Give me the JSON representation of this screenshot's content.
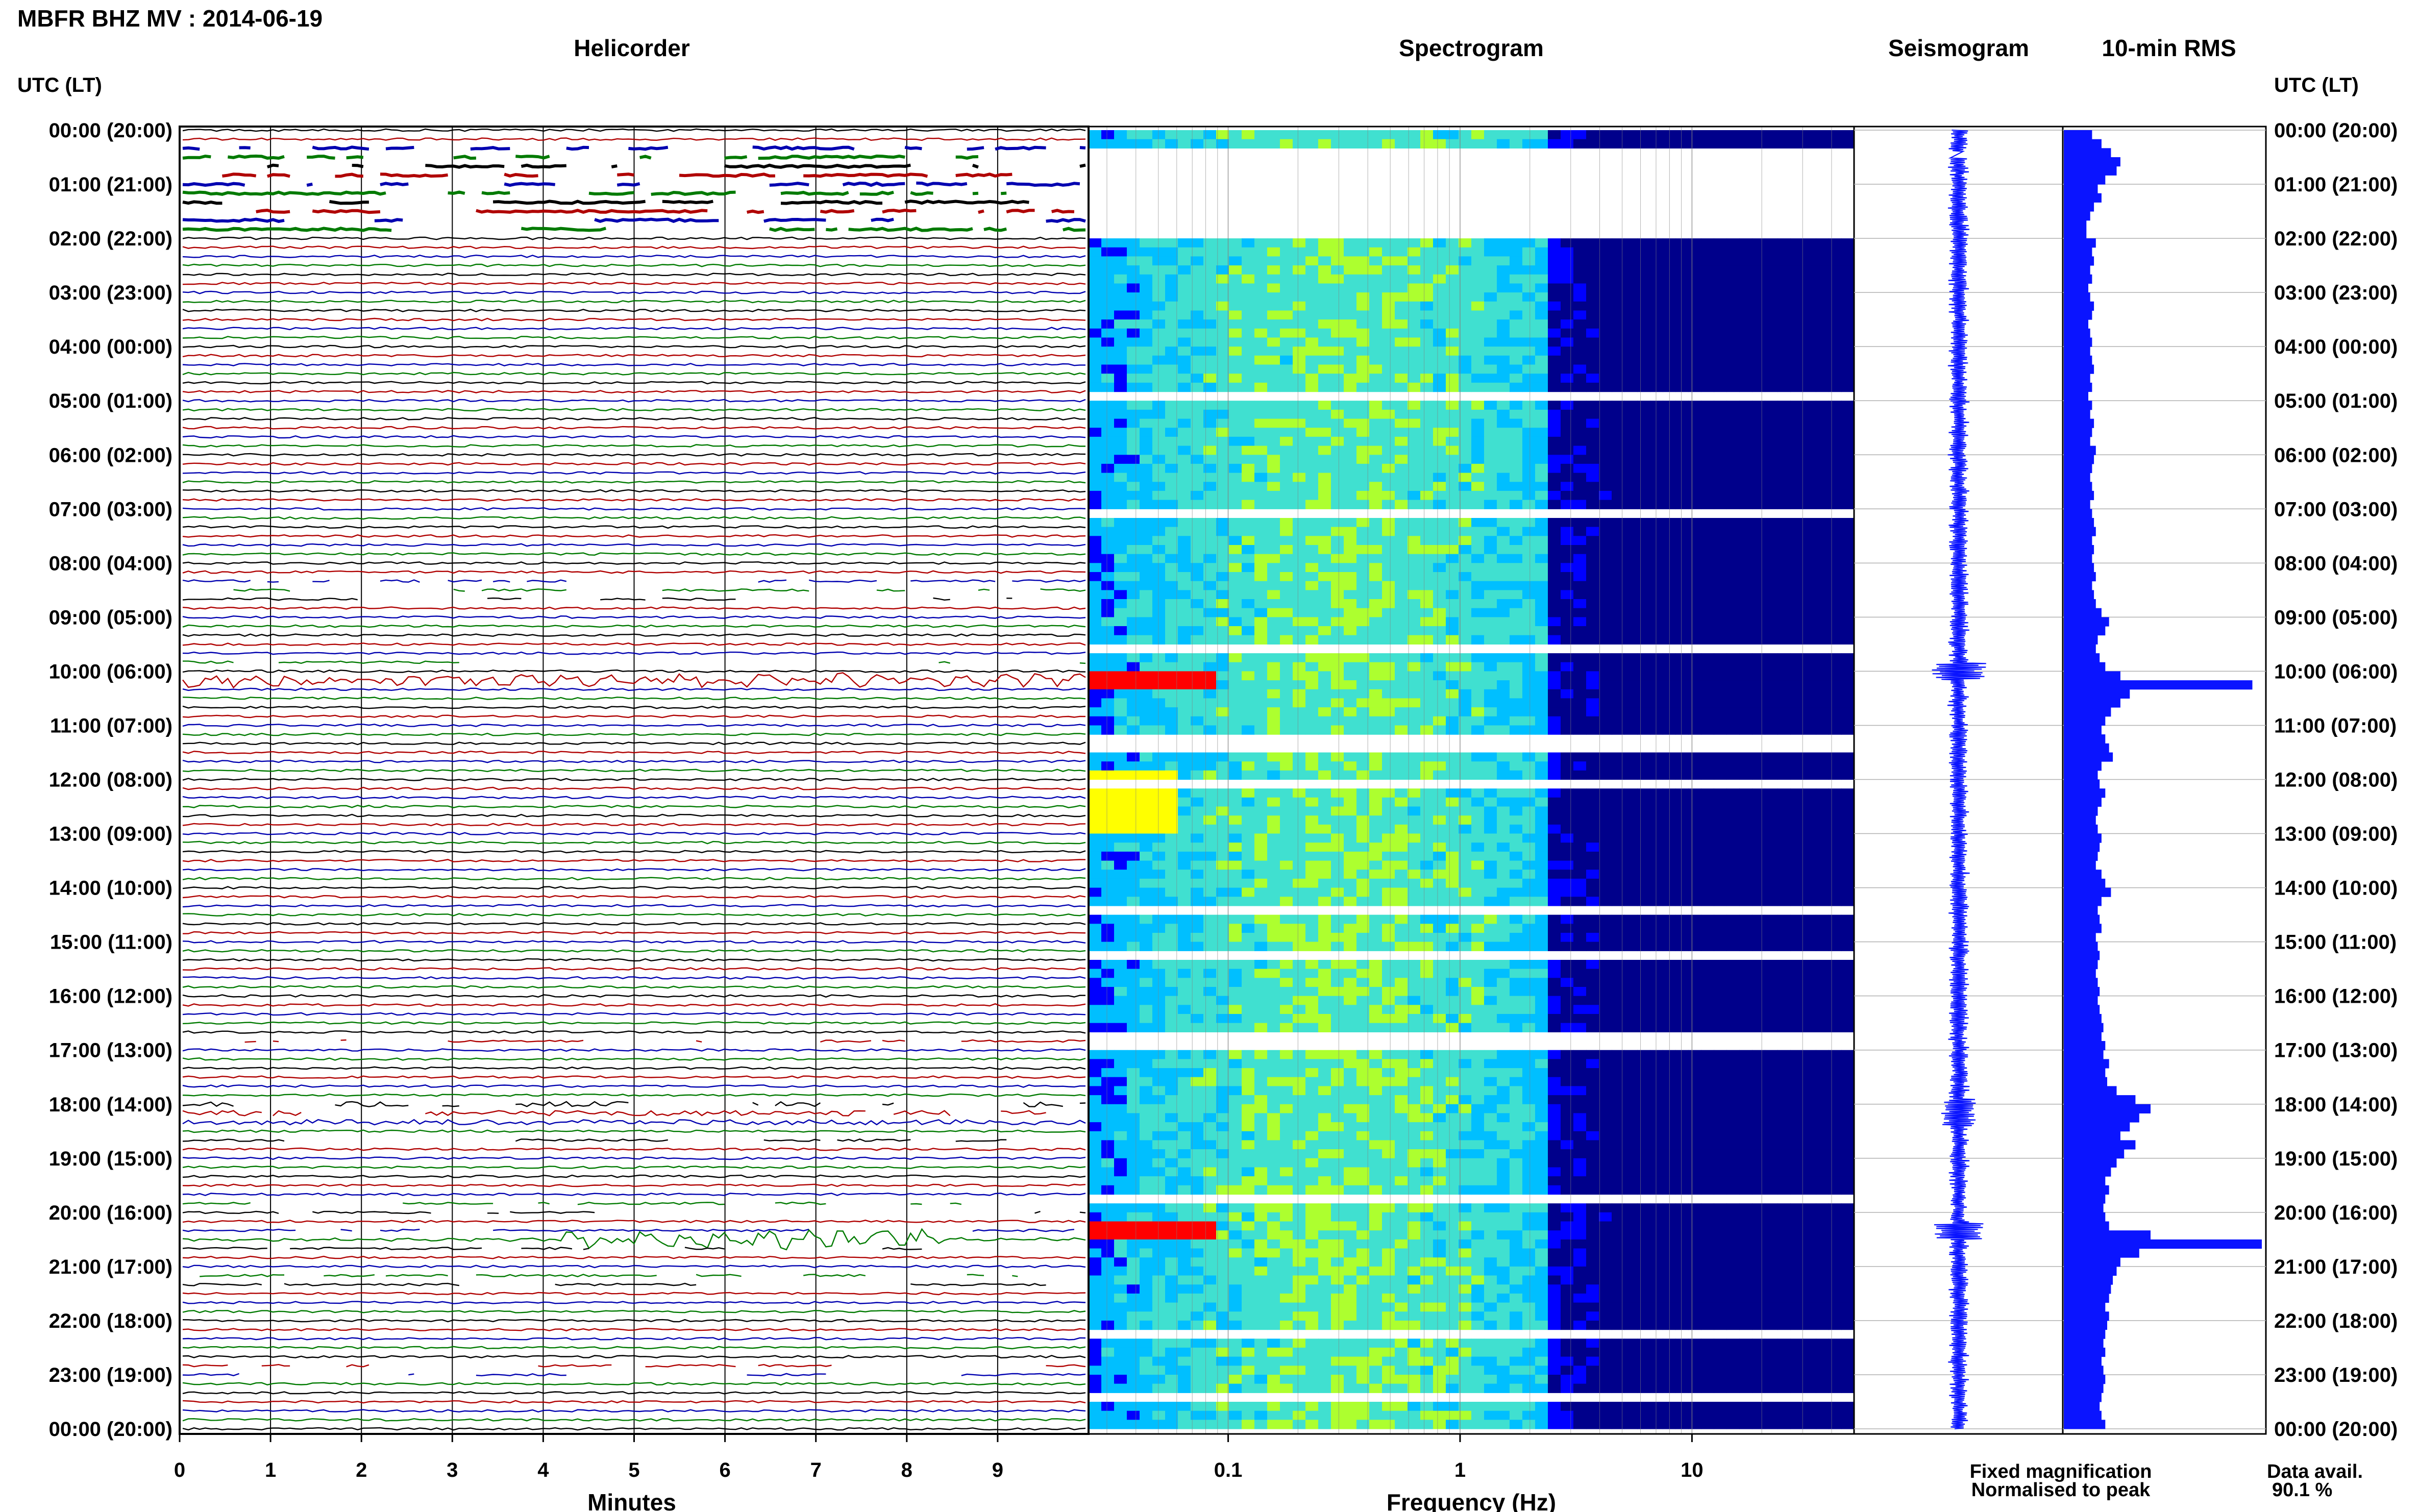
{
  "header": {
    "station_title": "MBFR BHZ MV : 2014-06-19"
  },
  "panels": {
    "helicorder_title": "Helicorder",
    "spectrogram_title": "Spectrogram",
    "seismogram_title": "Seismogram",
    "rms_title": "10-min RMS"
  },
  "axes": {
    "time_header_left": "UTC (LT)",
    "time_header_right": "UTC (LT)",
    "helicorder_xlabel": "Minutes",
    "spectrogram_xlabel": "Frequency (Hz)",
    "helicorder_ticks": [
      "0",
      "1",
      "2",
      "3",
      "4",
      "5",
      "6",
      "7",
      "8",
      "9"
    ],
    "spectrogram_ticks": [
      "0.1",
      "1",
      "10"
    ],
    "time_labels": [
      "00:00 (20:00)",
      "01:00 (21:00)",
      "02:00 (22:00)",
      "03:00 (23:00)",
      "04:00 (00:00)",
      "05:00 (01:00)",
      "06:00 (02:00)",
      "07:00 (03:00)",
      "08:00 (04:00)",
      "09:00 (05:00)",
      "10:00 (06:00)",
      "11:00 (07:00)",
      "12:00 (08:00)",
      "13:00 (09:00)",
      "14:00 (10:00)",
      "15:00 (11:00)",
      "16:00 (12:00)",
      "17:00 (13:00)",
      "18:00 (14:00)",
      "19:00 (15:00)",
      "20:00 (16:00)",
      "21:00 (17:00)",
      "22:00 (18:00)",
      "23:00 (19:00)",
      "00:00 (20:00)"
    ]
  },
  "footer": {
    "fixed_magnification": "Fixed magnification",
    "normalised": "Normalised to peak",
    "data_avail_label": "Data avail.",
    "data_avail_value": "90.1 %"
  },
  "colors": {
    "helicorder_traces": [
      "#000000",
      "#b00000",
      "#0000b0",
      "#007a00"
    ],
    "seismogram": "#0a14ff",
    "rms_bar": "#0a14ff",
    "fixed_magnification_text": "#1a1aff",
    "normalised_text": "#ff1a1a"
  },
  "chart_data": {
    "type": "multi-panel seismic daily plot",
    "helicorder": {
      "x_unit": "minutes",
      "xlim": [
        0,
        10
      ],
      "rows": 144,
      "row_minutes": 10,
      "rows_without_data": [
        2,
        3,
        4,
        5,
        6,
        7,
        8,
        9,
        10,
        11
      ]
    },
    "spectrogram": {
      "x_scale": "log",
      "xlim_hz": [
        0.025,
        50
      ],
      "colormap": [
        "#00008b",
        "#0000ff",
        "#00bfff",
        "#40e0d0",
        "#adff2f",
        "#ffff00",
        "#ff0000"
      ],
      "gaps_hours": [
        [
          0.3,
          0.4
        ],
        [
          0.5,
          1.95
        ],
        [
          3.35,
          3.45
        ],
        [
          4.8,
          4.85
        ],
        [
          5.45,
          5.5
        ],
        [
          7.0,
          7.05
        ],
        [
          7.7,
          7.75
        ],
        [
          8.4,
          8.45
        ],
        [
          8.7,
          8.75
        ],
        [
          8.95,
          9.0
        ],
        [
          9.45,
          9.65
        ],
        [
          11.15,
          11.35
        ],
        [
          11.7,
          11.75
        ],
        [
          11.95,
          12.1
        ],
        [
          13.35,
          13.45
        ],
        [
          14.3,
          14.35
        ],
        [
          14.6,
          14.65
        ],
        [
          15.1,
          15.2
        ],
        [
          16.55,
          16.85
        ],
        [
          17.05,
          17.1
        ],
        [
          17.55,
          17.65
        ],
        [
          19.2,
          19.25
        ],
        [
          19.55,
          19.8
        ],
        [
          21.35,
          21.4
        ],
        [
          22.1,
          22.2
        ],
        [
          22.55,
          22.6
        ],
        [
          23.3,
          23.35
        ]
      ]
    },
    "rms_10min": {
      "unit": "relative",
      "values": [
        0.15,
        0.2,
        0.25,
        0.3,
        0.28,
        0.22,
        0.18,
        0.2,
        0.16,
        0.14,
        0.12,
        0.12,
        0.17,
        0.15,
        0.16,
        0.14,
        0.15,
        0.13,
        0.14,
        0.16,
        0.15,
        0.13,
        0.14,
        0.15,
        0.14,
        0.15,
        0.16,
        0.14,
        0.15,
        0.13,
        0.15,
        0.14,
        0.16,
        0.15,
        0.14,
        0.17,
        0.16,
        0.15,
        0.14,
        0.15,
        0.16,
        0.14,
        0.15,
        0.16,
        0.17,
        0.15,
        0.16,
        0.15,
        0.16,
        0.17,
        0.15,
        0.16,
        0.17,
        0.2,
        0.24,
        0.22,
        0.18,
        0.17,
        0.19,
        0.22,
        0.3,
        1.0,
        0.35,
        0.3,
        0.25,
        0.22,
        0.2,
        0.22,
        0.24,
        0.26,
        0.2,
        0.18,
        0.19,
        0.22,
        0.2,
        0.18,
        0.17,
        0.18,
        0.2,
        0.19,
        0.18,
        0.17,
        0.2,
        0.22,
        0.25,
        0.2,
        0.18,
        0.19,
        0.2,
        0.17,
        0.18,
        0.19,
        0.18,
        0.17,
        0.18,
        0.19,
        0.18,
        0.19,
        0.2,
        0.21,
        0.2,
        0.22,
        0.21,
        0.24,
        0.22,
        0.23,
        0.28,
        0.38,
        0.46,
        0.4,
        0.35,
        0.3,
        0.38,
        0.32,
        0.28,
        0.25,
        0.22,
        0.24,
        0.22,
        0.21,
        0.22,
        0.24,
        0.46,
        1.05,
        0.4,
        0.3,
        0.28,
        0.26,
        0.25,
        0.24,
        0.22,
        0.24,
        0.23,
        0.22,
        0.21,
        0.22,
        0.2,
        0.21,
        0.22,
        0.21,
        0.2,
        0.19,
        0.2,
        0.22
      ]
    }
  }
}
